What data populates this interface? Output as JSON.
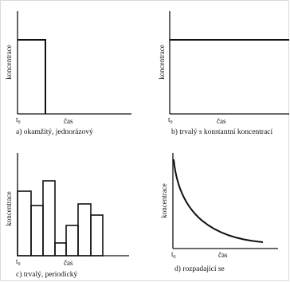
{
  "panels": [
    {
      "ylabel": "koncentrace",
      "xlabel": "čas",
      "origin": "t",
      "origin_sub": "0",
      "caption": "a) okamžitý, jednorázový"
    },
    {
      "ylabel": "koncentrace",
      "xlabel": "čas",
      "origin": "t",
      "origin_sub": "0",
      "caption": "b) trvalý s konstantní koncentrací"
    },
    {
      "ylabel": "koncentrace",
      "xlabel": "čas",
      "origin": "t",
      "origin_sub": "0",
      "caption": "c) trvalý, periodický"
    },
    {
      "ylabel": "koncentrace",
      "xlabel": "čas",
      "origin": "t",
      "origin_sub": "0",
      "caption": "d) rozpadající se"
    }
  ]
}
